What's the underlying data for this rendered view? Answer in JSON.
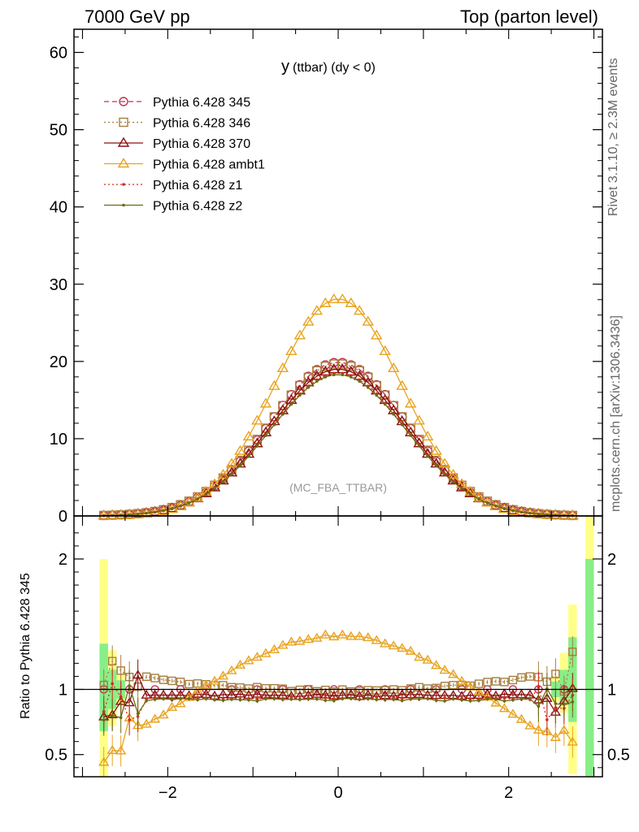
{
  "header": {
    "left": "7000 GeV pp",
    "right": "Top (parton level)"
  },
  "side_labels": {
    "rivet": "Rivet 3.1.10, ≥ 2.3M events",
    "mcplots": "mcplots.cern.ch [arXiv:1306.3436]"
  },
  "chart_data": {
    "type": "line",
    "title": "y (ttbar) (dy < 0)",
    "title_main": "y",
    "title_rest": "(ttbar) (dy < 0)",
    "watermark": "(MC_FBA_TTBAR)",
    "xlim": [
      -3.1,
      3.1
    ],
    "x_ticks": [
      -2,
      0,
      2
    ],
    "x_tick_labels": [
      "−2",
      "0",
      "2"
    ],
    "top_panel": {
      "ylim": [
        0,
        63
      ],
      "y_ticks": [
        0,
        10,
        20,
        30,
        40,
        50,
        60
      ],
      "y_tick_labels": [
        "0",
        "10",
        "20",
        "30",
        "40",
        "50",
        "60"
      ]
    },
    "ratio_panel": {
      "ylabel": "Ratio to Pythia 6.428 345",
      "ylim": [
        0.33,
        2.33
      ],
      "y_ticks": [
        0.5,
        1,
        2
      ],
      "y_tick_labels": [
        "0.5",
        "1",
        "2"
      ]
    },
    "legend_position": "top-left",
    "series": [
      {
        "name": "Pythia 6.428 345",
        "color": "#c0334f",
        "dash": "6,4",
        "marker": "circle",
        "peak": 19.9,
        "sigma": 0.8
      },
      {
        "name": "Pythia 6.428 346",
        "color": "#a67d3d",
        "dash": "2,3",
        "marker": "square",
        "peak": 19.7,
        "sigma": 0.81
      },
      {
        "name": "Pythia 6.428 370",
        "color": "#8b1010",
        "dash": "",
        "marker": "triangle",
        "peak": 19.0,
        "sigma": 0.8
      },
      {
        "name": "Pythia 6.428 ambt1",
        "color": "#e8a31f",
        "dash": "",
        "marker": "triangle",
        "peak": 28.1,
        "sigma": 0.74
      },
      {
        "name": "Pythia 6.428 z1",
        "color": "#d42a1a",
        "dash": "2,3",
        "marker": "dot",
        "peak": 18.5,
        "sigma": 0.8
      },
      {
        "name": "Pythia 6.428 z2",
        "color": "#6b6b10",
        "dash": "",
        "marker": "dot",
        "peak": 18.3,
        "sigma": 0.8
      }
    ]
  }
}
